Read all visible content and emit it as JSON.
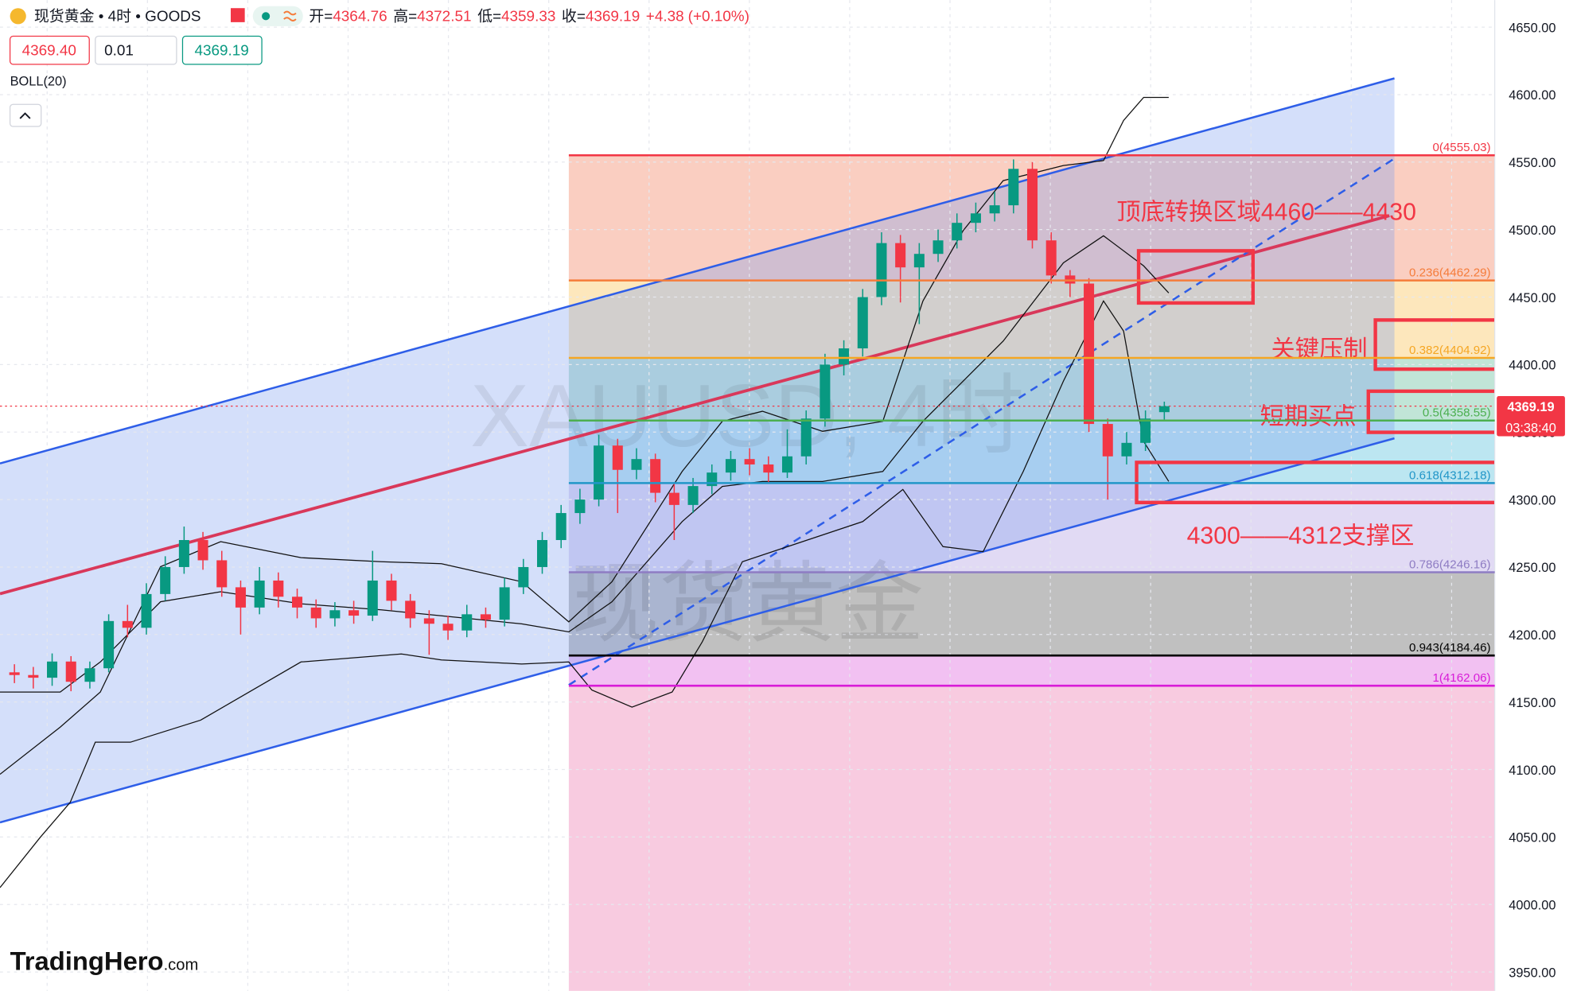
{
  "header": {
    "symbol": "现货黄金 • 4时 • GOODS",
    "ohlc": [
      {
        "label": "开=",
        "value": 4364.76
      },
      {
        "label": "高=",
        "value": 4372.51
      },
      {
        "label": "低=",
        "value": 4359.33
      },
      {
        "label": "收=",
        "value": 4369.19
      }
    ],
    "change": {
      "value": 4.38,
      "label": "+4.38"
    },
    "change_pct": {
      "value": 0.1,
      "label": "(+0.10%)"
    }
  },
  "order_panel": {
    "sell": "4369.40",
    "quantity": "0.01",
    "buy": "4369.19"
  },
  "indicator": "BOLL(20)",
  "watermark": [
    "XAUUSD, 4时",
    "现货黄金"
  ],
  "brand": {
    "name": "TradingHero",
    "suffix": ".com"
  },
  "chart_data": {
    "type": "candlestick",
    "open": [
      4172,
      4170,
      4168,
      4180,
      4165,
      4175,
      4210,
      4205,
      4230,
      4250,
      4270,
      4255,
      4235,
      4220,
      4240,
      4228,
      4220,
      4212,
      4218,
      4214,
      4240,
      4225,
      4212,
      4208,
      4203,
      4215,
      4211,
      4235,
      4250,
      4270,
      4290,
      4300,
      4340,
      4322,
      4330,
      4305,
      4296,
      4310,
      4320,
      4330,
      4326,
      4320,
      4332,
      4360,
      4400,
      4412,
      4450,
      4490,
      4472,
      4482,
      4492,
      4505,
      4512,
      4518,
      4545,
      4492,
      4466,
      4460,
      4356,
      4332,
      4342,
      4364.76
    ],
    "high": [
      4178,
      4176,
      4186,
      4184,
      4180,
      4215,
      4222,
      4238,
      4258,
      4280,
      4276,
      4262,
      4240,
      4250,
      4246,
      4234,
      4226,
      4224,
      4225,
      4262,
      4245,
      4230,
      4218,
      4214,
      4222,
      4220,
      4242,
      4256,
      4276,
      4296,
      4308,
      4348,
      4345,
      4338,
      4334,
      4312,
      4316,
      4326,
      4336,
      4338,
      4332,
      4352,
      4366,
      4408,
      4418,
      4456,
      4498,
      4496,
      4490,
      4500,
      4512,
      4520,
      4528,
      4552,
      4550,
      4498,
      4470,
      4464,
      4360,
      4350,
      4366,
      4372.51
    ],
    "low": [
      4164,
      4160,
      4162,
      4158,
      4160,
      4172,
      4198,
      4200,
      4225,
      4245,
      4248,
      4228,
      4200,
      4215,
      4220,
      4212,
      4205,
      4206,
      4208,
      4210,
      4218,
      4205,
      4185,
      4196,
      4198,
      4205,
      4206,
      4230,
      4245,
      4264,
      4282,
      4295,
      4290,
      4315,
      4298,
      4270,
      4290,
      4304,
      4314,
      4318,
      4312,
      4316,
      4326,
      4354,
      4392,
      4406,
      4444,
      4446,
      4430,
      4476,
      4486,
      4498,
      4506,
      4512,
      4486,
      4460,
      4450,
      4350,
      4300,
      4326,
      4336,
      4359.33
    ],
    "close": [
      4170,
      4168,
      4180,
      4165,
      4175,
      4210,
      4205,
      4230,
      4250,
      4270,
      4255,
      4235,
      4220,
      4240,
      4228,
      4220,
      4212,
      4218,
      4214,
      4240,
      4225,
      4212,
      4208,
      4203,
      4215,
      4211,
      4235,
      4250,
      4270,
      4290,
      4300,
      4340,
      4322,
      4330,
      4305,
      4296,
      4310,
      4320,
      4330,
      4326,
      4320,
      4332,
      4360,
      4400,
      4412,
      4450,
      4490,
      4472,
      4482,
      4492,
      4505,
      4512,
      4518,
      4545,
      4492,
      4466,
      4460,
      4356,
      4332,
      4342,
      4360,
      4369.19
    ],
    "up_color": "#089981",
    "down_color": "#f23645",
    "ylim": [
      3936,
      4670
    ],
    "yticks": [
      {
        "value": 3950,
        "label": "3950.00"
      },
      {
        "value": 4000,
        "label": "4000.00"
      },
      {
        "value": 4050,
        "label": "4050.00"
      },
      {
        "value": 4100,
        "label": "4100.00"
      },
      {
        "value": 4150,
        "label": "4150.00"
      },
      {
        "value": 4200,
        "label": "4200.00"
      },
      {
        "value": 4250,
        "label": "4250.00"
      },
      {
        "value": 4300,
        "label": "4300.00"
      },
      {
        "value": 4350,
        "label": "4350.00"
      },
      {
        "value": 4400,
        "label": "4400.00"
      },
      {
        "value": 4450,
        "label": "4450.00"
      },
      {
        "value": 4500,
        "label": "4500.00"
      },
      {
        "value": 4550,
        "label": "4550.00"
      },
      {
        "value": 4600,
        "label": "4600.00"
      },
      {
        "value": 4650,
        "label": "4650.00"
      }
    ],
    "last_price": 4369.19,
    "countdown": "03:38:40",
    "fibonacci": [
      {
        "label": "0(4555.03)",
        "value": 4555.03,
        "color": "#f23645",
        "fill": "#f9c6b6"
      },
      {
        "label": "0.236(4462.29)",
        "value": 4462.29,
        "color": "#f57c3a",
        "fill": "#fde3b0"
      },
      {
        "label": "0.382(4404.92)",
        "value": 4404.92,
        "color": "#f5a623",
        "fill": "#b6e0d0"
      },
      {
        "label": "0.5(4358.55)",
        "value": 4358.55,
        "color": "#4caf50",
        "fill": "#b0e2ee"
      },
      {
        "label": "0.618(4312.18)",
        "value": 4312.18,
        "color": "#2196c8",
        "fill": "#dcd4f2"
      },
      {
        "label": "0.786(4246.16)",
        "value": 4246.16,
        "color": "#8e7cc3",
        "fill": "#b5b5b5"
      },
      {
        "label": "0.943(4184.46)",
        "value": 4184.46,
        "color": "#000000",
        "fill": "#f0b6f0"
      },
      {
        "label": "1(4162.06)",
        "value": 4162.06,
        "color": "#d81bd8",
        "fill": "#f7c2da"
      }
    ],
    "annotations": [
      "顶底转换区域4460——4430",
      "关键压制",
      "短期买点",
      "4300——4312支撑区"
    ]
  }
}
